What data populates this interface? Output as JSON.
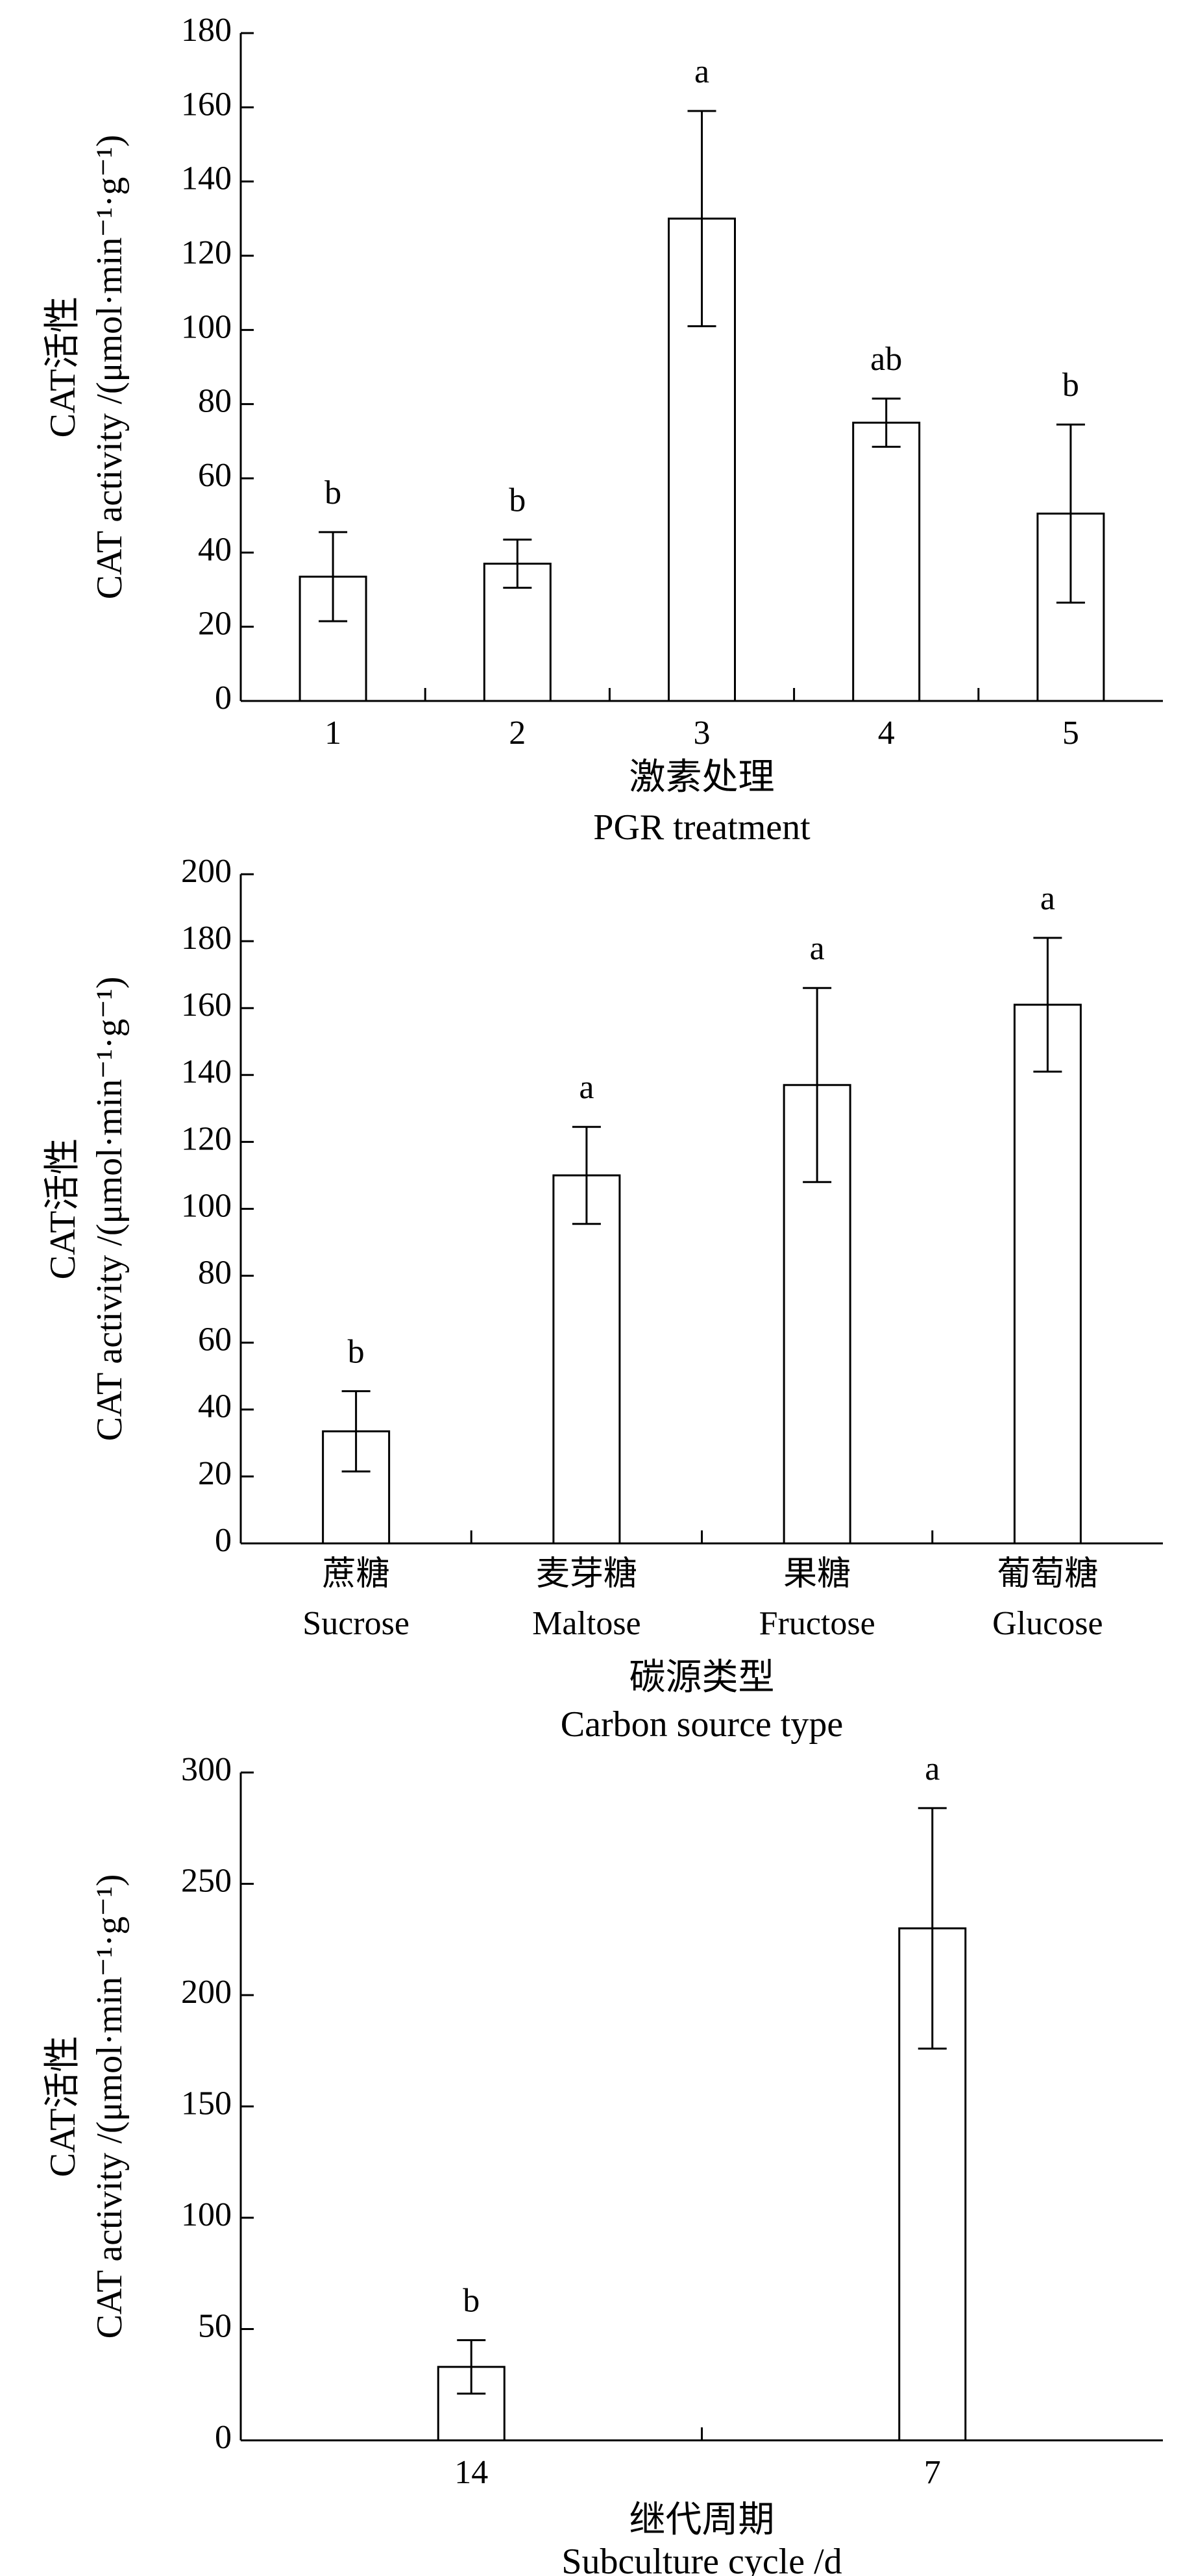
{
  "chart_data": [
    {
      "type": "bar",
      "ylabel": [
        "CAT活性",
        "CAT activity /(μmol·min⁻¹·g⁻¹)"
      ],
      "xlabel": [
        "激素处理",
        "PGR treatment"
      ],
      "categories": [
        [
          "1"
        ],
        [
          "2"
        ],
        [
          "3"
        ],
        [
          "4"
        ],
        [
          "5"
        ]
      ],
      "values": [
        33.5,
        37,
        130,
        75,
        50.5
      ],
      "errors": [
        12,
        6.5,
        29,
        6.5,
        24
      ],
      "annotations": [
        "b",
        "b",
        "a",
        "ab",
        "b"
      ],
      "color": "#ffffff",
      "ylim": [
        0,
        180
      ],
      "yticks": [
        0,
        20,
        40,
        60,
        80,
        100,
        120,
        140,
        160,
        180
      ]
    },
    {
      "type": "bar",
      "ylabel": [
        "CAT活性",
        "CAT activity /(μmol·min⁻¹·g⁻¹)"
      ],
      "xlabel": [
        "碳源类型",
        "Carbon source type"
      ],
      "categories": [
        [
          "蔗糖",
          "Sucrose"
        ],
        [
          "麦芽糖",
          "Maltose"
        ],
        [
          "果糖",
          "Fructose"
        ],
        [
          "葡萄糖",
          "Glucose"
        ]
      ],
      "values": [
        33.5,
        110,
        137,
        161
      ],
      "errors": [
        12,
        14.5,
        29,
        20
      ],
      "annotations": [
        "b",
        "a",
        "a",
        "a"
      ],
      "color": "#ffffff",
      "ylim": [
        0,
        200
      ],
      "yticks": [
        0,
        20,
        40,
        60,
        80,
        100,
        120,
        140,
        160,
        180,
        200
      ]
    },
    {
      "type": "bar",
      "ylabel": [
        "CAT活性",
        "CAT activity /(μmol·min⁻¹·g⁻¹)"
      ],
      "xlabel": [
        "继代周期",
        "Subculture cycle /d"
      ],
      "categories": [
        [
          "14"
        ],
        [
          "7"
        ]
      ],
      "values": [
        33,
        230
      ],
      "errors": [
        12,
        54
      ],
      "annotations": [
        "b",
        "a"
      ],
      "color": "#ffffff",
      "ylim": [
        0,
        300
      ],
      "yticks": [
        0,
        50,
        100,
        150,
        200,
        250,
        300
      ]
    }
  ]
}
